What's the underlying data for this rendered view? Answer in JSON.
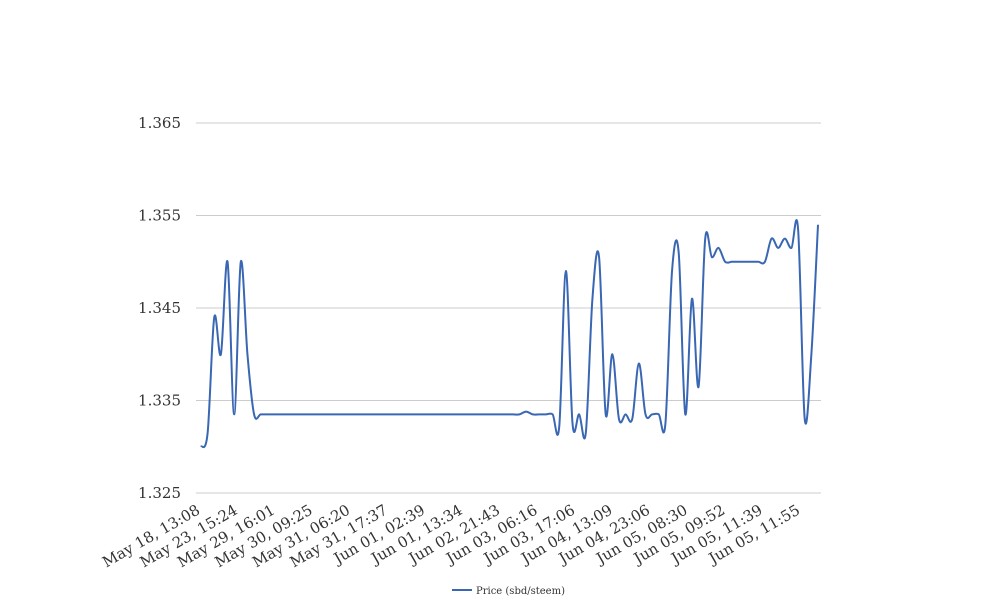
{
  "chart_data": {
    "type": "line",
    "title": "",
    "xlabel": "",
    "ylabel": "",
    "ylim": [
      1.325,
      1.365
    ],
    "yticks": [
      1.325,
      1.335,
      1.345,
      1.355,
      1.365
    ],
    "ytick_labels": [
      "1.325",
      "1.335",
      "1.345",
      "1.355",
      "1.365"
    ],
    "xtick_labels": [
      "May 18, 13:08",
      "May 23, 15:24",
      "May 29, 16:01",
      "May 30, 09:25",
      "May 31, 06:20",
      "May 31, 17:37",
      "Jun 01, 02:39",
      "Jun 01, 13:34",
      "Jun 02, 21:43",
      "Jun 03, 06:16",
      "Jun 03, 17:06",
      "Jun 04, 13:09",
      "Jun 04, 23:06",
      "Jun 05, 08:30",
      "Jun 05, 09:52",
      "Jun 05, 11:39",
      "Jun 05, 11:55"
    ],
    "grid": true,
    "legend": "bottom-center",
    "series": [
      {
        "name": "Price (sbd/steem)",
        "color": "#3a67b3",
        "values": [
          1.33,
          1.3315,
          1.344,
          1.34,
          1.35,
          1.3335,
          1.35,
          1.34,
          1.3335,
          1.3335,
          1.3335,
          1.3335,
          1.3335,
          1.3335,
          1.3335,
          1.3335,
          1.3335,
          1.3335,
          1.3335,
          1.3335,
          1.3335,
          1.3335,
          1.3335,
          1.3335,
          1.3335,
          1.3335,
          1.3335,
          1.3335,
          1.3335,
          1.3335,
          1.3335,
          1.3335,
          1.3335,
          1.3335,
          1.3335,
          1.3335,
          1.3335,
          1.3335,
          1.3335,
          1.3335,
          1.3335,
          1.3335,
          1.3335,
          1.3335,
          1.3335,
          1.3335,
          1.3335,
          1.3335,
          1.3335,
          1.3338,
          1.3335,
          1.3335,
          1.3335,
          1.3335,
          1.3322,
          1.349,
          1.3325,
          1.3335,
          1.3315,
          1.346,
          1.3505,
          1.3335,
          1.34,
          1.333,
          1.3335,
          1.333,
          1.339,
          1.3335,
          1.3335,
          1.3335,
          1.3325,
          1.349,
          1.351,
          1.3335,
          1.346,
          1.3365,
          1.3525,
          1.3505,
          1.3515,
          1.35,
          1.35,
          1.35,
          1.35,
          1.35,
          1.35,
          1.35,
          1.3525,
          1.3515,
          1.3525,
          1.3515,
          1.3535,
          1.333,
          1.34,
          1.354
        ]
      }
    ]
  }
}
